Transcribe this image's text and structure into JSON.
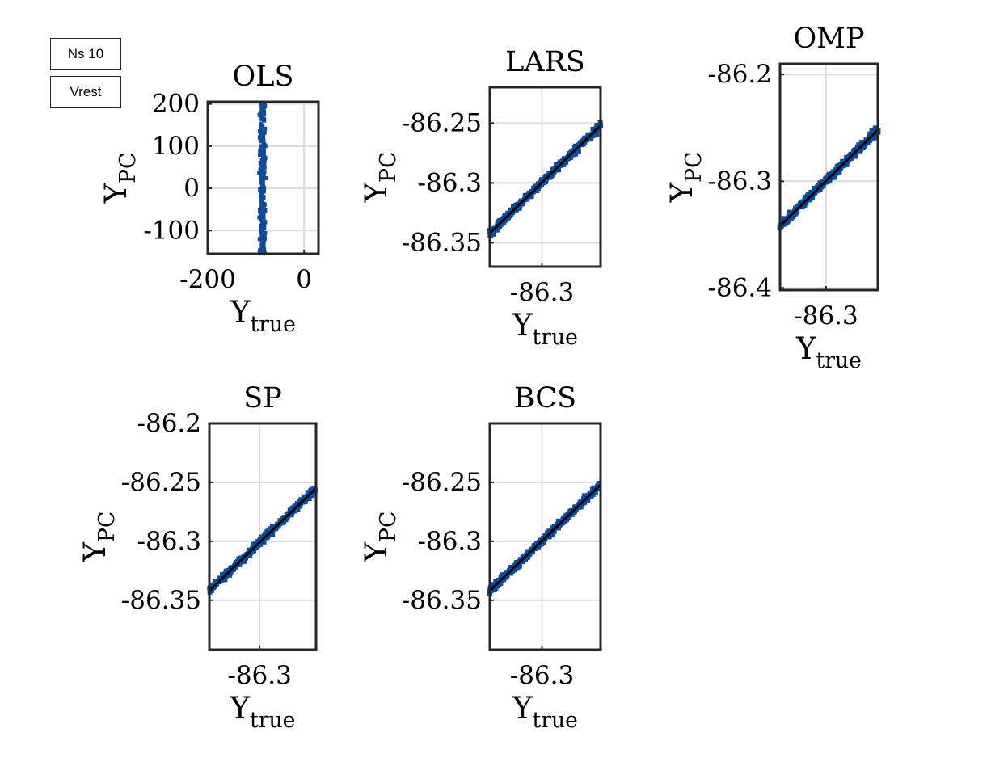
{
  "labels": {
    "box1": "Ns 10",
    "box2": "Vrest"
  },
  "colors": {
    "points": "#0d4c9c",
    "fit_line": "#000000",
    "grid": "#dcdcdc",
    "axis": "#262626"
  },
  "chart_data": [
    {
      "type": "scatter",
      "title": "OLS",
      "ylabel": "Y",
      "ylabel_sub": "PC",
      "xlabel": "Y",
      "xlabel_sub": "true",
      "xlim": [
        -200,
        30
      ],
      "ylim": [
        -155,
        205
      ],
      "xticks": [
        -200,
        0
      ],
      "xticklabels": [
        "-200",
        "0"
      ],
      "yticks": [
        -100,
        0,
        100,
        200
      ],
      "yticklabels": [
        "-100",
        "0",
        "100",
        "200"
      ],
      "series": [
        {
          "kind": "vertical_cloud",
          "x": -86.3,
          "y_min": -155,
          "y_max": 205,
          "x_spread": 8
        }
      ]
    },
    {
      "type": "scatter",
      "title": "LARS",
      "ylabel": "Y",
      "ylabel_sub": "PC",
      "xlabel": "Y",
      "xlabel_sub": "true",
      "xlim": [
        -86.34,
        -86.255
      ],
      "ylim": [
        -86.37,
        -86.22
      ],
      "xticks": [
        -86.3
      ],
      "xticklabels": [
        "-86.3"
      ],
      "yticks": [
        -86.35,
        -86.3,
        -86.25
      ],
      "yticklabels": [
        "-86.35",
        "-86.3",
        "-86.25"
      ],
      "series": [
        {
          "kind": "diagonal_cloud",
          "x": [
            -86.34,
            -86.255
          ],
          "y": [
            -86.342,
            -86.252
          ],
          "width": 0.004
        },
        {
          "kind": "fit_line",
          "x": [
            -86.34,
            -86.255
          ],
          "y": [
            -86.342,
            -86.252
          ]
        }
      ]
    },
    {
      "type": "scatter",
      "title": "OMP",
      "ylabel": "Y",
      "ylabel_sub": "PC",
      "xlabel": "Y",
      "xlabel_sub": "true",
      "xlim": [
        -86.34,
        -86.255
      ],
      "ylim": [
        -86.402,
        -86.19
      ],
      "xticks": [
        -86.3
      ],
      "xticklabels": [
        "-86.3"
      ],
      "yticks": [
        -86.4,
        -86.3,
        -86.2
      ],
      "yticklabels": [
        "-86.4",
        "-86.3",
        "-86.2"
      ],
      "series": [
        {
          "kind": "diagonal_cloud",
          "x": [
            -86.34,
            -86.255
          ],
          "y": [
            -86.342,
            -86.252
          ],
          "width": 0.005
        },
        {
          "kind": "fit_line",
          "x": [
            -86.34,
            -86.255
          ],
          "y": [
            -86.342,
            -86.252
          ]
        }
      ]
    },
    {
      "type": "scatter",
      "title": "SP",
      "ylabel": "Y",
      "ylabel_sub": "PC",
      "xlabel": "Y",
      "xlabel_sub": "true",
      "xlim": [
        -86.34,
        -86.255
      ],
      "ylim": [
        -86.392,
        -86.2
      ],
      "xticks": [
        -86.3
      ],
      "xticklabels": [
        "-86.3"
      ],
      "yticks": [
        -86.35,
        -86.3,
        -86.25,
        -86.2
      ],
      "yticklabels": [
        "-86.35",
        "-86.3",
        "-86.25",
        "-86.2"
      ],
      "series": [
        {
          "kind": "diagonal_cloud",
          "x": [
            -86.34,
            -86.255
          ],
          "y": [
            -86.342,
            -86.255
          ],
          "width": 0.004
        },
        {
          "kind": "fit_line",
          "x": [
            -86.34,
            -86.255
          ],
          "y": [
            -86.342,
            -86.255
          ]
        }
      ]
    },
    {
      "type": "scatter",
      "title": "BCS",
      "ylabel": "Y",
      "ylabel_sub": "PC",
      "xlabel": "Y",
      "xlabel_sub": "true",
      "xlim": [
        -86.34,
        -86.255
      ],
      "ylim": [
        -86.392,
        -86.2
      ],
      "xticks": [
        -86.3
      ],
      "xticklabels": [
        "-86.3"
      ],
      "yticks": [
        -86.35,
        -86.3,
        -86.25
      ],
      "yticklabels": [
        "-86.35",
        "-86.3",
        "-86.25"
      ],
      "series": [
        {
          "kind": "diagonal_cloud",
          "x": [
            -86.34,
            -86.255
          ],
          "y": [
            -86.342,
            -86.252
          ],
          "width": 0.004
        },
        {
          "kind": "fit_line",
          "x": [
            -86.34,
            -86.255
          ],
          "y": [
            -86.342,
            -86.252
          ]
        }
      ]
    }
  ]
}
